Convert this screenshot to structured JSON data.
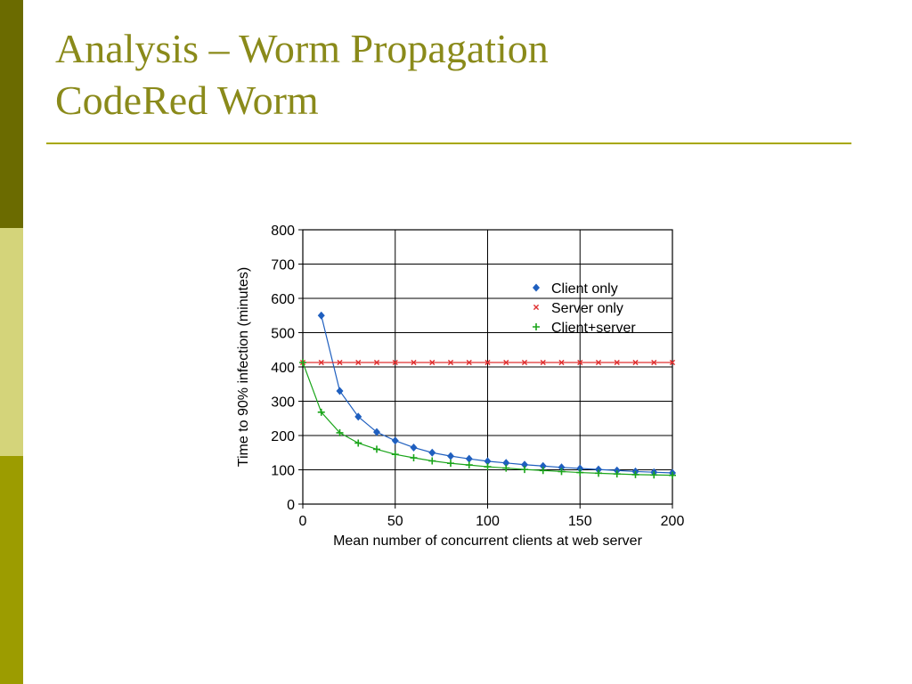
{
  "slide": {
    "title_lines": [
      "Analysis – Worm Propagation",
      "CodeRed Worm"
    ],
    "colors": {
      "title": "#8a8a1a",
      "rule": "#a8a800",
      "sidebar_top": "#6b6b00",
      "sidebar_mid": "#d4d47a",
      "sidebar_bottom": "#9c9c00"
    }
  },
  "chart_data": {
    "type": "line",
    "title": "",
    "xlabel": "Mean number of concurrent clients at web server",
    "ylabel": "Time to 90% infection (minutes)",
    "xlim": [
      0,
      200
    ],
    "ylim": [
      0,
      800
    ],
    "xticks": [
      0,
      50,
      100,
      150,
      200
    ],
    "yticks": [
      0,
      100,
      200,
      300,
      400,
      500,
      600,
      700,
      800
    ],
    "grid": true,
    "legend_position": "top-right",
    "series": [
      {
        "name": "Client only",
        "color": "#1f5fbf",
        "marker": "diamond",
        "x": [
          10,
          20,
          30,
          40,
          50,
          60,
          70,
          80,
          90,
          100,
          110,
          120,
          130,
          140,
          150,
          160,
          170,
          180,
          190,
          200
        ],
        "y": [
          550,
          330,
          255,
          210,
          185,
          165,
          150,
          140,
          132,
          125,
          120,
          115,
          111,
          107,
          104,
          101,
          98,
          95,
          93,
          91
        ]
      },
      {
        "name": "Server only",
        "color": "#e03030",
        "marker": "x",
        "x": [
          0,
          10,
          20,
          30,
          40,
          50,
          60,
          70,
          80,
          90,
          100,
          110,
          120,
          130,
          140,
          150,
          160,
          170,
          180,
          190,
          200
        ],
        "y": [
          413,
          413,
          413,
          413,
          413,
          413,
          413,
          413,
          413,
          413,
          413,
          413,
          413,
          413,
          413,
          413,
          413,
          413,
          413,
          413,
          413
        ]
      },
      {
        "name": "Client+server",
        "color": "#1aa51a",
        "marker": "plus",
        "x": [
          0,
          10,
          20,
          30,
          40,
          50,
          60,
          70,
          80,
          90,
          100,
          110,
          120,
          130,
          140,
          150,
          160,
          170,
          180,
          190,
          200
        ],
        "y": [
          413,
          268,
          208,
          178,
          160,
          145,
          135,
          126,
          119,
          114,
          109,
          105,
          101,
          98,
          95,
          92,
          90,
          88,
          86,
          85,
          84
        ]
      }
    ]
  }
}
